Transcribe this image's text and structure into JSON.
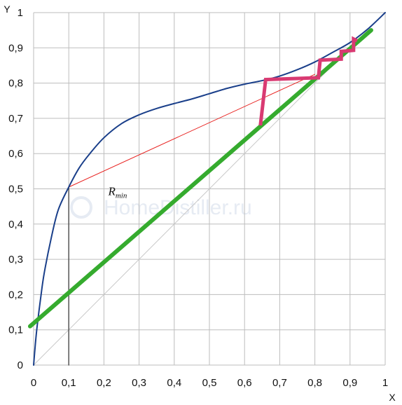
{
  "chart_data": {
    "type": "line",
    "xlabel": "X",
    "ylabel": "Y",
    "xlim": [
      0,
      1
    ],
    "ylim": [
      0,
      1
    ],
    "grid": true,
    "x_ticks": [
      "0",
      "0,1",
      "0,2",
      "0,3",
      "0,4",
      "0,5",
      "0,6",
      "0,7",
      "0,8",
      "0,9",
      "1"
    ],
    "y_ticks": [
      "0",
      "0,1",
      "0,2",
      "0,3",
      "0,4",
      "0,5",
      "0,6",
      "0,7",
      "0,8",
      "0,9",
      "1"
    ],
    "annotation": {
      "text": "R",
      "subscript": "min",
      "x": 0.22,
      "y": 0.51
    },
    "watermark": "HomeDistiller.ru",
    "series": [
      {
        "role": "equilibrium-curve",
        "color": "#1a3f8a",
        "x": [
          0,
          0.005,
          0.01,
          0.02,
          0.03,
          0.05,
          0.07,
          0.1,
          0.13,
          0.16,
          0.2,
          0.25,
          0.3,
          0.35,
          0.4,
          0.45,
          0.5,
          0.55,
          0.6,
          0.65,
          0.7,
          0.75,
          0.8,
          0.85,
          0.9,
          0.95,
          1.0
        ],
        "y": [
          0,
          0.06,
          0.11,
          0.19,
          0.26,
          0.36,
          0.44,
          0.505,
          0.56,
          0.6,
          0.645,
          0.685,
          0.71,
          0.728,
          0.742,
          0.755,
          0.77,
          0.785,
          0.797,
          0.807,
          0.82,
          0.838,
          0.86,
          0.887,
          0.915,
          0.953,
          1.0
        ]
      },
      {
        "role": "diagonal",
        "color": "#c8c8c8",
        "x": [
          0,
          1
        ],
        "y": [
          0,
          1
        ]
      },
      {
        "role": "minimum-reflux-line",
        "color": "#e8211f",
        "x": [
          0.1,
          0.8
        ],
        "y": [
          0.505,
          0.825
        ]
      },
      {
        "role": "operating-line",
        "color": "#35ab2e",
        "x": [
          -0.01,
          0.96
        ],
        "y": [
          0.11,
          0.95
        ]
      },
      {
        "role": "steps",
        "color": "#d93a72",
        "x": [
          0.645,
          0.66,
          0.805,
          0.81,
          0.815,
          0.875,
          0.875,
          0.91,
          0.91,
          0.92
        ],
        "y": [
          0.68,
          0.81,
          0.815,
          0.815,
          0.865,
          0.868,
          0.89,
          0.893,
          0.925,
          0.92
        ]
      },
      {
        "role": "feed-drop",
        "color": "#555555",
        "x": [
          0.1,
          0.1
        ],
        "y": [
          0,
          0.505
        ]
      }
    ]
  }
}
